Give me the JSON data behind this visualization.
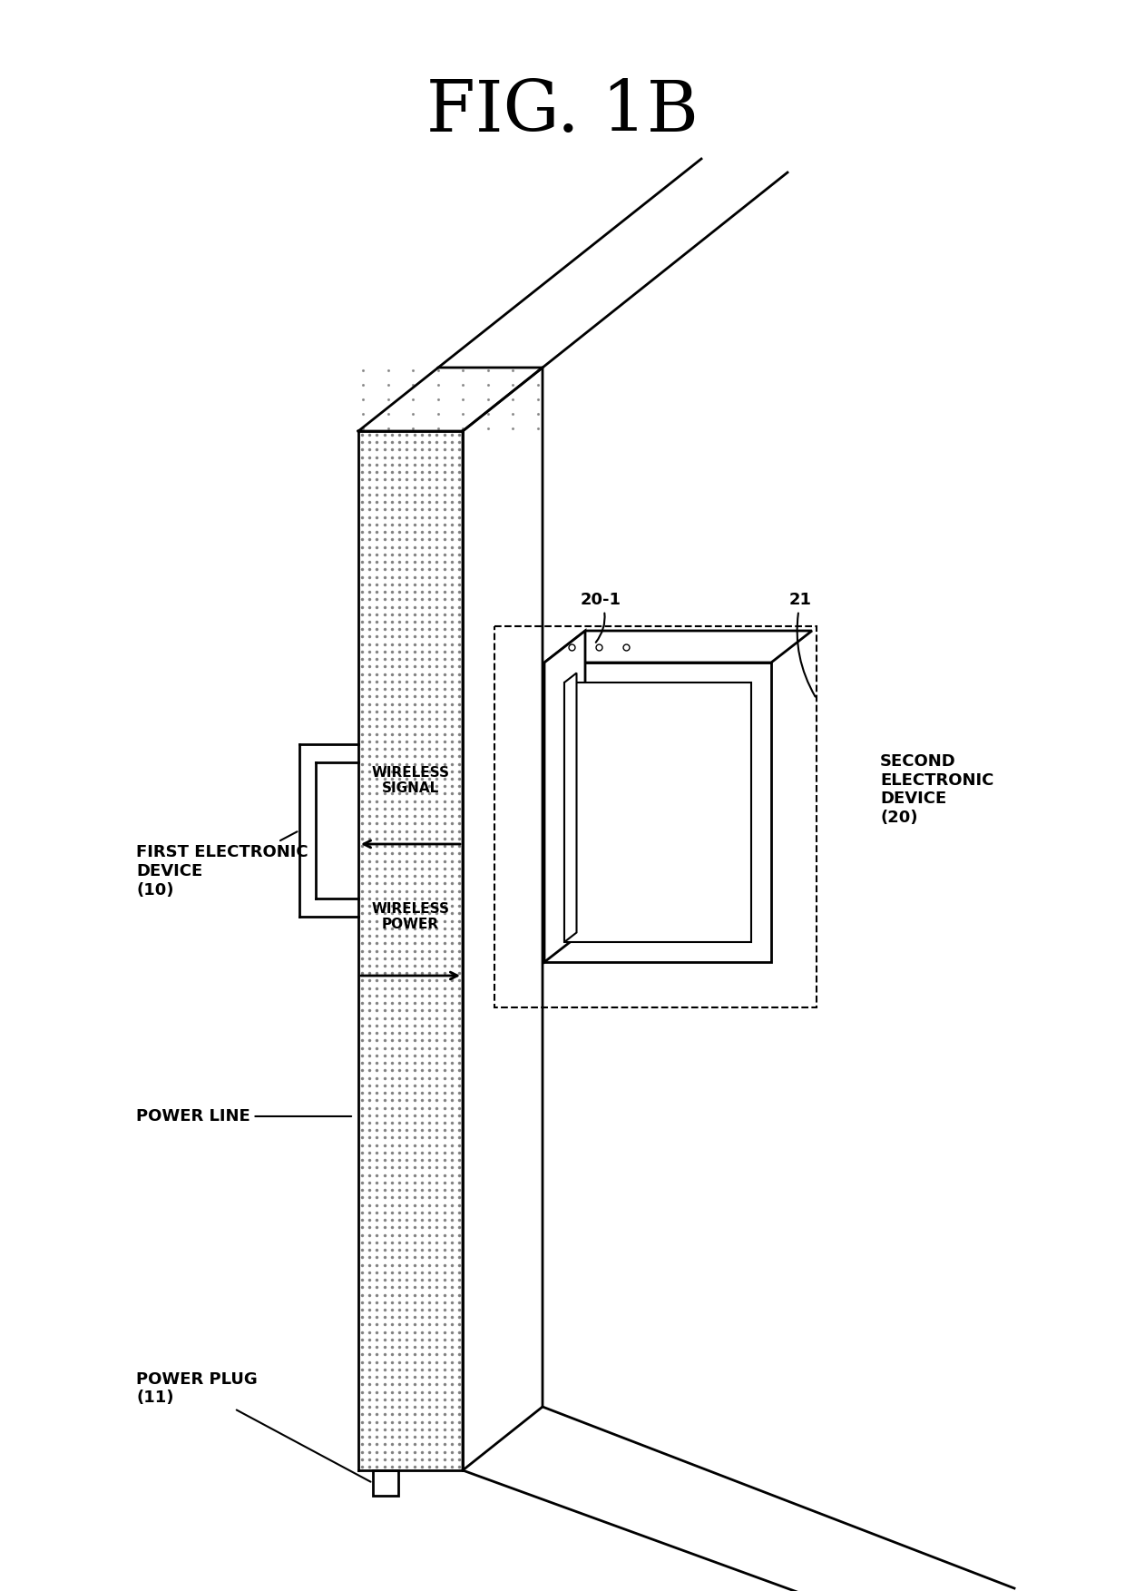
{
  "title": "FIG. 1B",
  "title_fontsize": 56,
  "title_font": "serif",
  "bg_color": "#ffffff",
  "line_color": "#000000",
  "labels": {
    "first_device": "FIRST ELECTRONIC\nDEVICE\n(10)",
    "power_line": "POWER LINE",
    "power_plug": "POWER PLUG\n(11)",
    "wireless_signal": "WIRELESS\nSIGNAL",
    "wireless_power": "WIRELESS\nPOWER",
    "second_device": "SECOND\nELECTRONIC\nDEVICE\n(20)",
    "label_20_1": "20-1",
    "label_21": "21"
  }
}
